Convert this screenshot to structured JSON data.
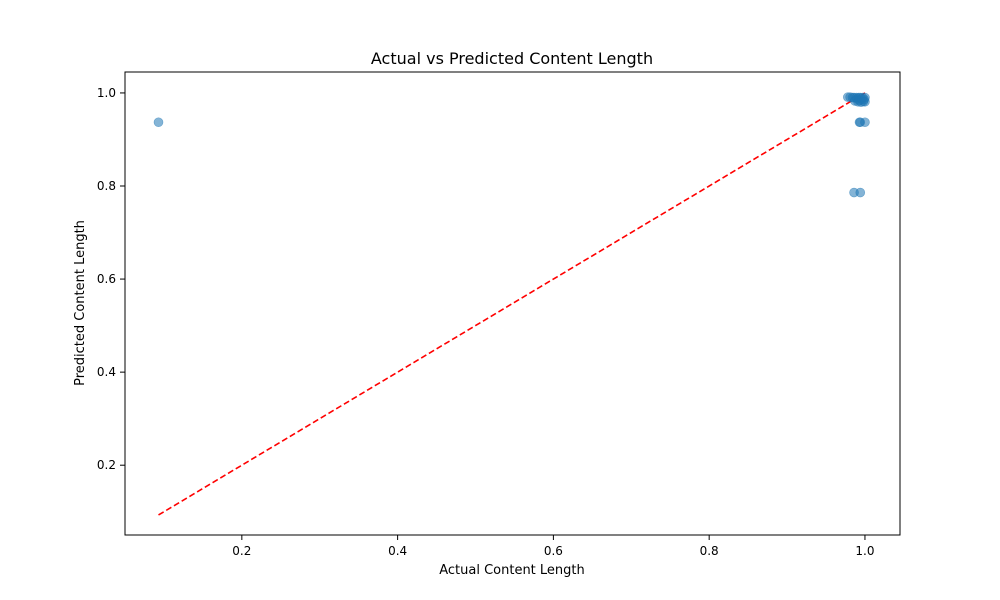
{
  "chart_data": {
    "type": "scatter",
    "title": "Actual vs Predicted Content Length",
    "xlabel": "Actual Content Length",
    "ylabel": "Predicted Content Length",
    "xlim": [
      0.05,
      1.045
    ],
    "ylim": [
      0.05,
      1.045
    ],
    "xticks": [
      0.2,
      0.4,
      0.6,
      0.8,
      1.0
    ],
    "xtick_labels": [
      "0.2",
      "0.4",
      "0.6",
      "0.8",
      "1.0"
    ],
    "yticks": [
      0.2,
      0.4,
      0.6,
      0.8,
      1.0
    ],
    "ytick_labels": [
      "0.2",
      "0.4",
      "0.6",
      "0.8",
      "1.0"
    ],
    "grid": false,
    "point_color": "#1f77b4",
    "point_alpha": 0.55,
    "reference_line": {
      "x": [
        0.093,
        1.0
      ],
      "y": [
        0.093,
        1.0
      ],
      "color": "#ff0000",
      "style": "dashed"
    },
    "points": [
      {
        "x": 0.093,
        "y": 0.937
      },
      {
        "x": 0.978,
        "y": 0.991
      },
      {
        "x": 0.981,
        "y": 0.991
      },
      {
        "x": 0.984,
        "y": 0.99
      },
      {
        "x": 0.986,
        "y": 0.99
      },
      {
        "x": 0.987,
        "y": 0.983
      },
      {
        "x": 0.989,
        "y": 0.99
      },
      {
        "x": 0.99,
        "y": 0.987
      },
      {
        "x": 0.991,
        "y": 0.981
      },
      {
        "x": 0.992,
        "y": 0.99
      },
      {
        "x": 0.993,
        "y": 0.984
      },
      {
        "x": 0.994,
        "y": 0.99
      },
      {
        "x": 0.995,
        "y": 0.98
      },
      {
        "x": 0.996,
        "y": 0.987
      },
      {
        "x": 0.997,
        "y": 0.99
      },
      {
        "x": 0.998,
        "y": 0.982
      },
      {
        "x": 0.999,
        "y": 0.986
      },
      {
        "x": 1.0,
        "y": 0.99
      },
      {
        "x": 1.0,
        "y": 0.981
      },
      {
        "x": 0.993,
        "y": 0.937
      },
      {
        "x": 0.994,
        "y": 0.937
      },
      {
        "x": 1.0,
        "y": 0.937
      },
      {
        "x": 0.986,
        "y": 0.786
      },
      {
        "x": 0.994,
        "y": 0.786
      }
    ]
  }
}
